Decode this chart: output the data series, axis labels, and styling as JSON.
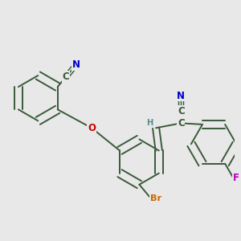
{
  "bg_color": "#e8e8e8",
  "bond_color": "#3a5a3a",
  "bond_width": 1.4,
  "atom_colors": {
    "N": "#0000cc",
    "O": "#cc0000",
    "Br": "#cc6600",
    "F": "#bb00bb",
    "C": "#3a5a3a",
    "H": "#5a8a8a"
  },
  "font_size": 8.5
}
